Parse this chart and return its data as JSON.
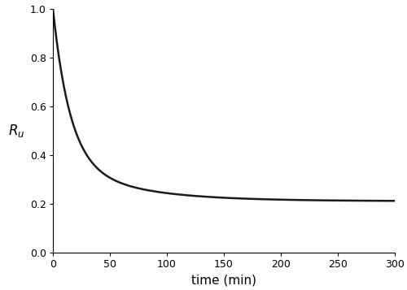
{
  "title": "",
  "xlabel": "time (min)",
  "ylabel": "$R_u$",
  "xlim": [
    0,
    300
  ],
  "ylim": [
    0.0,
    1.0
  ],
  "xticks": [
    0,
    50,
    100,
    150,
    200,
    250,
    300
  ],
  "yticks": [
    0.0,
    0.2,
    0.4,
    0.6,
    0.8,
    1.0
  ],
  "line_color": "#1a1a1a",
  "line_width": 1.8,
  "background_color": "#ffffff",
  "curve_params": {
    "A1": 0.62,
    "tau1": 15.0,
    "A2": 0.17,
    "tau2": 60.0,
    "C": 0.21
  },
  "figsize": [
    5.0,
    3.57
  ],
  "dpi": 100
}
